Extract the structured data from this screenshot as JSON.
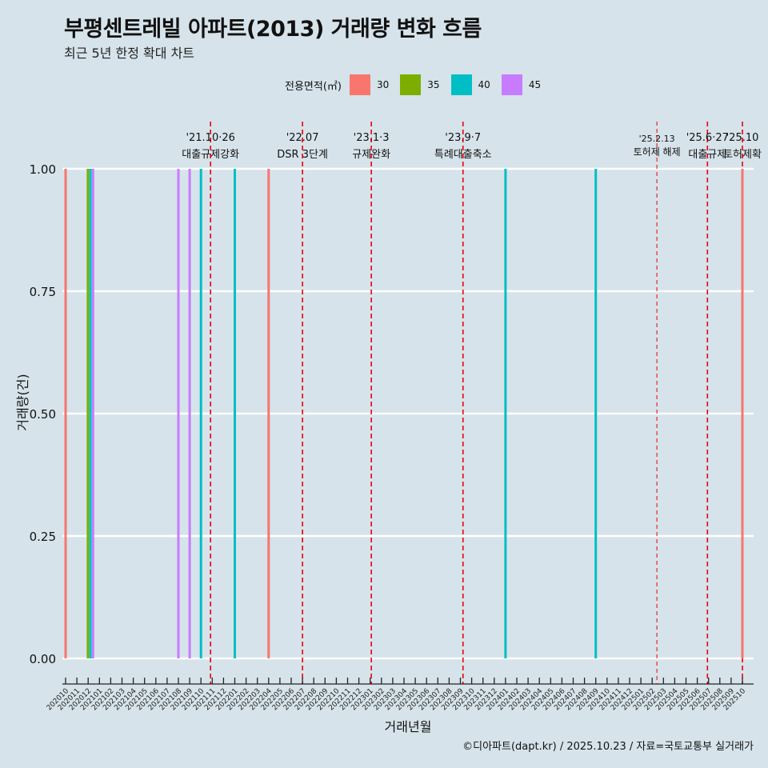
{
  "title": "부평센트레빌 아파트(2013) 거래량 변화 흐름",
  "subtitle": "최근 5년 한정 확대 차트",
  "legend_title": "전용면적(㎡)",
  "caption": "©디아파트(dapt.kr) / 2025.10.23 / 자료=국토교통부 실거래가",
  "colors": {
    "30": "#f8766d",
    "35": "#7cae00",
    "40": "#00bfc4",
    "45": "#c77cff",
    "policy_line": "#e8000b",
    "background": "#d6e3ea"
  },
  "chart_data": {
    "type": "bar",
    "xlabel": "거래년월",
    "ylabel": "거래량(건)",
    "ylim": [
      0,
      1
    ],
    "yticks": [
      "0.00",
      "0.25",
      "0.50",
      "0.75",
      "1.00"
    ],
    "categories": [
      "202010",
      "202011",
      "202012",
      "202101",
      "202102",
      "202103",
      "202104",
      "202105",
      "202106",
      "202107",
      "202108",
      "202109",
      "202110",
      "202111",
      "202112",
      "202201",
      "202202",
      "202203",
      "202204",
      "202205",
      "202206",
      "202207",
      "202208",
      "202209",
      "202210",
      "202211",
      "202212",
      "202301",
      "202302",
      "202303",
      "202304",
      "202305",
      "202306",
      "202307",
      "202308",
      "202309",
      "202310",
      "202311",
      "202312",
      "202401",
      "202402",
      "202403",
      "202404",
      "202405",
      "202406",
      "202407",
      "202408",
      "202409",
      "202410",
      "202411",
      "202412",
      "202501",
      "202502",
      "202503",
      "202504",
      "202505",
      "202506",
      "202507",
      "202508",
      "202509",
      "202510"
    ],
    "series": [
      {
        "name": "30",
        "points": [
          {
            "x": "202010",
            "y": 1
          },
          {
            "x": "202204",
            "y": 1
          },
          {
            "x": "202510",
            "y": 1
          }
        ]
      },
      {
        "name": "35",
        "points": [
          {
            "x": "202011",
            "y": 1
          }
        ]
      },
      {
        "name": "40",
        "points": [
          {
            "x": "202011",
            "y": 1
          },
          {
            "x": "202110",
            "y": 1
          },
          {
            "x": "202201",
            "y": 1
          },
          {
            "x": "202401",
            "y": 1
          },
          {
            "x": "202409",
            "y": 1
          }
        ]
      },
      {
        "name": "45",
        "points": [
          {
            "x": "202011",
            "y": 1
          },
          {
            "x": "202108",
            "y": 1
          },
          {
            "x": "202109",
            "y": 1
          }
        ]
      }
    ],
    "annotations": [
      {
        "date": "'21.10·26",
        "label": "대출규제강화",
        "month": "202110",
        "offset": 0.85
      },
      {
        "date": "'22.07",
        "label": "DSR 3단계",
        "month": "202207",
        "offset": 0.0
      },
      {
        "date": "'23.1·3",
        "label": "규제완화",
        "month": "202301",
        "offset": 0.1
      },
      {
        "date": "'23.9·7",
        "label": "특례대출축소",
        "month": "202309",
        "offset": 0.23
      },
      {
        "date": "'25.2.13",
        "label": "토허제 해제",
        "month": "202502",
        "offset": 0.42,
        "dashed": "thin"
      },
      {
        "date": "'25.6·27",
        "label": "대출규제",
        "month": "202506",
        "offset": 0.9
      },
      {
        "date": "'25.10",
        "label": "토허제확",
        "month": "202510",
        "offset": 0.0
      }
    ]
  }
}
